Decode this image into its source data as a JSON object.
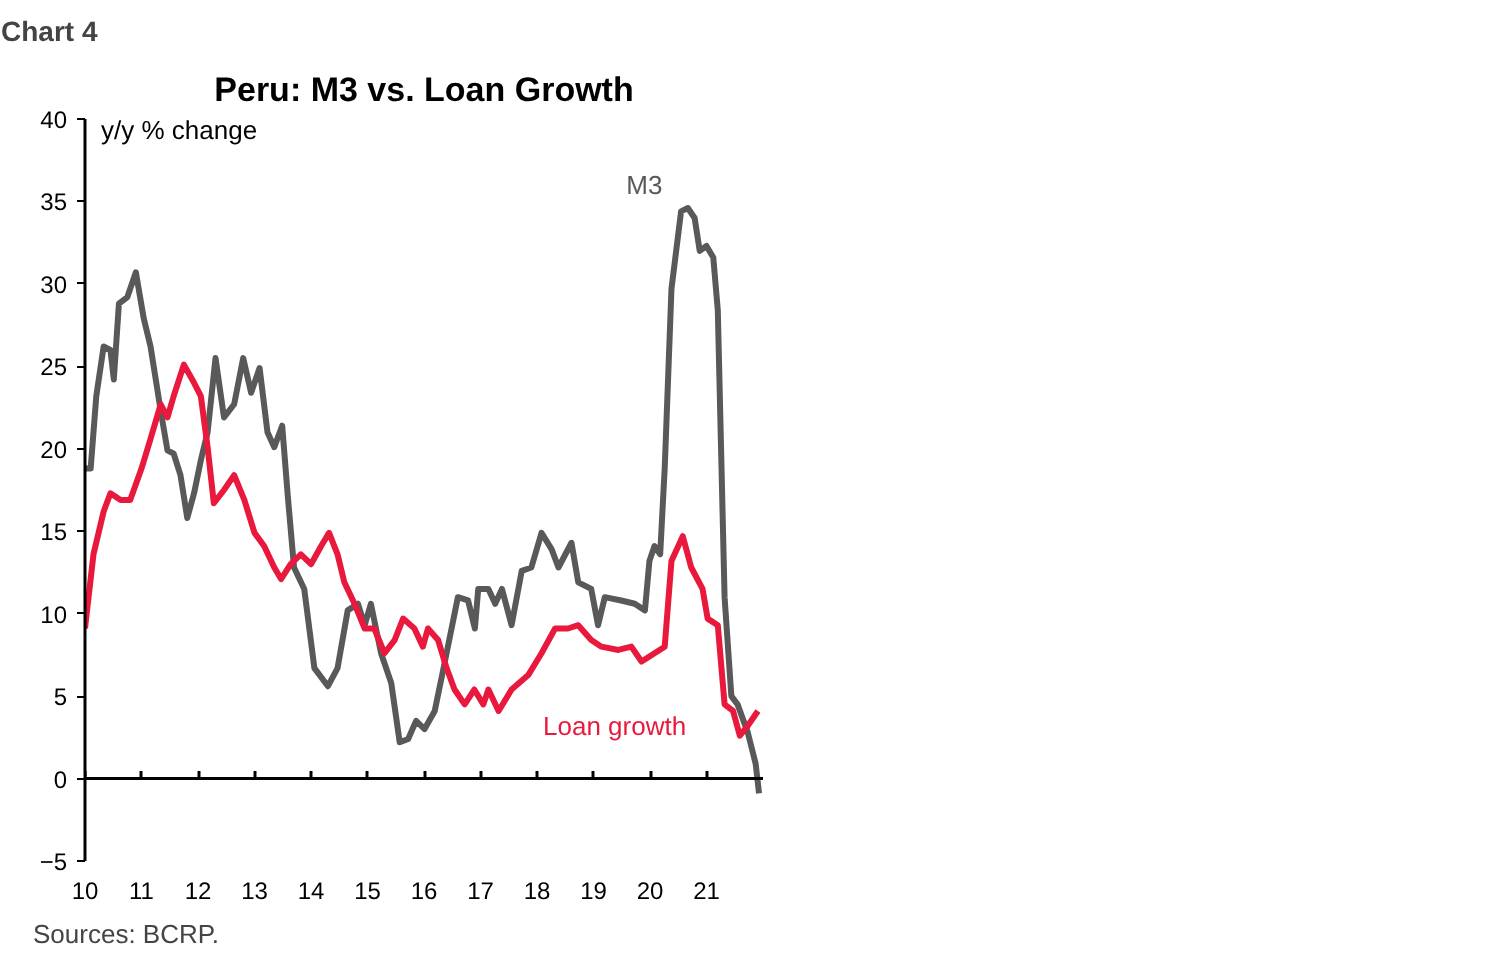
{
  "chart_data": {
    "type": "line",
    "title": "Peru: M3 vs. Loan Growth",
    "ylabel": "y/y % change",
    "annotations": [
      "Chart 4",
      "Sources: BCRP."
    ],
    "xlim": [
      2010,
      2022
    ],
    "ylim": [
      -5,
      40
    ],
    "xticks": [
      {
        "value": 2010,
        "label": "10"
      },
      {
        "value": 2011,
        "label": "11"
      },
      {
        "value": 2012,
        "label": "12"
      },
      {
        "value": 2013,
        "label": "13"
      },
      {
        "value": 2014,
        "label": "14"
      },
      {
        "value": 2015,
        "label": "15"
      },
      {
        "value": 2016,
        "label": "16"
      },
      {
        "value": 2017,
        "label": "17"
      },
      {
        "value": 2018,
        "label": "18"
      },
      {
        "value": 2019,
        "label": "19"
      },
      {
        "value": 2020,
        "label": "20"
      },
      {
        "value": 2021,
        "label": "21"
      }
    ],
    "yticks": [
      -5,
      0,
      5,
      10,
      15,
      20,
      25,
      30,
      35,
      40
    ],
    "grid": false,
    "legend": false,
    "ref_lines": [
      {
        "axis": "y",
        "value": 0,
        "color": "#000000"
      }
    ],
    "marker": "none",
    "line_style": "solid",
    "series": [
      {
        "name": "M3",
        "color": "#595959",
        "x": [
          2010.0,
          2010.1,
          2010.2,
          2010.33,
          2010.45,
          2010.51,
          2010.6,
          2010.75,
          2010.9,
          2011.04,
          2011.16,
          2011.34,
          2011.46,
          2011.57,
          2011.69,
          2011.81,
          2011.93,
          2012.05,
          2012.17,
          2012.31,
          2012.46,
          2012.64,
          2012.8,
          2012.94,
          2013.09,
          2013.23,
          2013.35,
          2013.49,
          2013.59,
          2013.7,
          2013.88,
          2014.06,
          2014.3,
          2014.47,
          2014.65,
          2014.83,
          2014.95,
          2015.06,
          2015.24,
          2015.42,
          2015.57,
          2015.72,
          2015.86,
          2016.01,
          2016.19,
          2016.37,
          2016.6,
          2016.78,
          2016.9,
          2016.96,
          2017.14,
          2017.26,
          2017.38,
          2017.55,
          2017.73,
          2017.9,
          2018.08,
          2018.26,
          2018.38,
          2018.61,
          2018.73,
          2018.96,
          2019.08,
          2019.2,
          2019.49,
          2019.73,
          2019.91,
          2019.99,
          2020.08,
          2020.18,
          2020.26,
          2020.38,
          2020.55,
          2020.67,
          2020.79,
          2020.88,
          2021.0,
          2021.12,
          2021.2,
          2021.32,
          2021.44,
          2021.55,
          2021.73,
          2021.87,
          2021.93
        ],
        "values": [
          18.8,
          18.8,
          23.2,
          26.2,
          26.0,
          24.2,
          28.8,
          29.2,
          30.7,
          27.9,
          26.2,
          22.3,
          19.9,
          19.7,
          18.4,
          15.8,
          17.3,
          19.3,
          21.0,
          25.5,
          21.9,
          22.7,
          25.5,
          23.4,
          24.9,
          21.0,
          20.1,
          21.4,
          17.1,
          12.8,
          11.5,
          6.7,
          5.6,
          6.7,
          10.2,
          10.6,
          9.3,
          10.6,
          7.6,
          5.8,
          2.2,
          2.4,
          3.5,
          3.0,
          4.1,
          7.1,
          11.0,
          10.8,
          9.1,
          11.5,
          11.5,
          10.6,
          11.5,
          9.3,
          12.6,
          12.8,
          14.9,
          13.9,
          12.8,
          14.3,
          11.9,
          11.5,
          9.3,
          11.0,
          10.8,
          10.6,
          10.2,
          13.2,
          14.1,
          13.6,
          18.8,
          29.7,
          34.4,
          34.6,
          34.0,
          32.0,
          32.3,
          31.6,
          28.4,
          11.0,
          5.0,
          4.5,
          2.8,
          0.9,
          -0.9
        ]
      },
      {
        "name": "Loan growth",
        "color": "#e8193c",
        "x": [
          2010.0,
          2010.15,
          2010.33,
          2010.45,
          2010.63,
          2010.8,
          2011.0,
          2011.16,
          2011.34,
          2011.46,
          2011.57,
          2011.75,
          2011.93,
          2012.05,
          2012.17,
          2012.28,
          2012.46,
          2012.64,
          2012.82,
          2013.0,
          2013.17,
          2013.35,
          2013.47,
          2013.64,
          2013.82,
          2014.0,
          2014.18,
          2014.32,
          2014.47,
          2014.59,
          2014.77,
          2014.95,
          2015.12,
          2015.3,
          2015.48,
          2015.63,
          2015.83,
          2015.98,
          2016.07,
          2016.25,
          2016.4,
          2016.54,
          2016.72,
          2016.89,
          2017.05,
          2017.14,
          2017.32,
          2017.55,
          2017.85,
          2018.08,
          2018.32,
          2018.55,
          2018.73,
          2018.96,
          2019.14,
          2019.44,
          2019.67,
          2019.85,
          2020.08,
          2020.26,
          2020.38,
          2020.58,
          2020.73,
          2020.93,
          2021.02,
          2021.2,
          2021.32,
          2021.47,
          2021.59,
          2021.73,
          2021.91
        ],
        "values": [
          9.1,
          13.6,
          16.2,
          17.3,
          16.9,
          16.9,
          18.8,
          20.6,
          22.7,
          21.9,
          23.2,
          25.1,
          24.0,
          23.2,
          20.1,
          16.7,
          17.5,
          18.4,
          16.9,
          14.9,
          14.1,
          12.8,
          12.1,
          13.0,
          13.6,
          13.0,
          14.1,
          14.9,
          13.6,
          11.9,
          10.6,
          9.1,
          9.1,
          7.6,
          8.4,
          9.7,
          9.1,
          8.0,
          9.1,
          8.4,
          6.7,
          5.4,
          4.5,
          5.4,
          4.5,
          5.4,
          4.1,
          5.4,
          6.3,
          7.6,
          9.1,
          9.1,
          9.3,
          8.4,
          8.0,
          7.8,
          8.0,
          7.1,
          7.6,
          8.0,
          13.2,
          14.7,
          12.8,
          11.5,
          9.7,
          9.3,
          4.5,
          4.1,
          2.6,
          3.2,
          4.1
        ]
      }
    ]
  }
}
